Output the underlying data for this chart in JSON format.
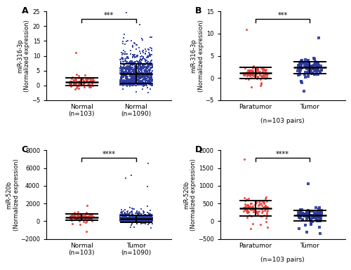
{
  "panels": [
    {
      "label": "A",
      "ylabel": "miR-316-3p\n(Normalized expression)",
      "groups": [
        {
          "name": "Normal",
          "subname": "(n=103)",
          "color": "#e8403a",
          "marker": "o",
          "n": 103,
          "mean": 1.2,
          "sd": 1.5,
          "outlier_high": 11.0
        },
        {
          "name": "Normal",
          "subname": "(n=1090)",
          "color": "#2b3a9e",
          "marker": "s",
          "n": 1090,
          "mean": 5.5,
          "sd": 3.2,
          "outlier_high": 20.5
        }
      ],
      "sig_text": "***",
      "ylim": [
        -5,
        25
      ],
      "yticks": [
        -5,
        0,
        5,
        10,
        15,
        20,
        25
      ],
      "has_shared_xlabel": false
    },
    {
      "label": "B",
      "ylabel": "miR-316-3p\n(Normalized expression)",
      "groups": [
        {
          "name": "Paratumor",
          "subname": "",
          "color": "#e8403a",
          "marker": "o",
          "n": 103,
          "mean": 1.2,
          "sd": 1.2,
          "outlier_high": 11.0
        },
        {
          "name": "Tumor",
          "subname": "",
          "color": "#2b3a9e",
          "marker": "s",
          "n": 103,
          "mean": 2.5,
          "sd": 1.8,
          "outlier_high": 9.0
        }
      ],
      "sig_text": "***",
      "ylim": [
        -5,
        15
      ],
      "yticks": [
        -5,
        0,
        5,
        10,
        15
      ],
      "has_shared_xlabel": true,
      "shared_xlabel": "(n=103 pairs)"
    },
    {
      "label": "C",
      "ylabel": "miR-520b\n(Normalized expression)",
      "groups": [
        {
          "name": "Normal",
          "subname": "(n=103)",
          "color": "#e8403a",
          "marker": "o",
          "n": 103,
          "mean": 500,
          "sd": 350,
          "outlier_high": 1800
        },
        {
          "name": "Tumor",
          "subname": "(n=1090)",
          "color": "#2b3a9e",
          "marker": "s",
          "n": 1090,
          "mean": 350,
          "sd": 600,
          "outlier_high": 6500
        }
      ],
      "sig_text": "****",
      "ylim": [
        -2000,
        8000
      ],
      "yticks": [
        -2000,
        0,
        2000,
        4000,
        6000,
        8000
      ],
      "has_shared_xlabel": false
    },
    {
      "label": "D",
      "ylabel": "miR-520b\n(Normalized expression)",
      "groups": [
        {
          "name": "Paratumor",
          "subname": "",
          "color": "#e8403a",
          "marker": "o",
          "n": 103,
          "mean": 380,
          "sd": 250,
          "outlier_high": 1750
        },
        {
          "name": "Tumor",
          "subname": "",
          "color": "#2b3a9e",
          "marker": "s",
          "n": 103,
          "mean": 180,
          "sd": 180,
          "outlier_high": 1050
        }
      ],
      "sig_text": "****",
      "ylim": [
        -500,
        2000
      ],
      "yticks": [
        -500,
        0,
        500,
        1000,
        1500,
        2000
      ],
      "has_shared_xlabel": true,
      "shared_xlabel": "(n=103 pairs)"
    }
  ]
}
